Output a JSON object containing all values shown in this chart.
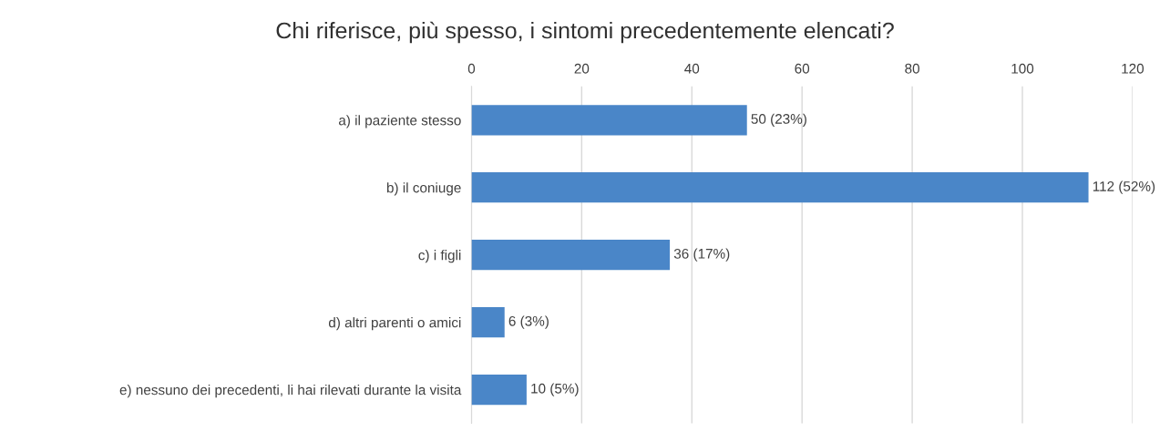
{
  "chart_data": {
    "type": "bar",
    "orientation": "horizontal",
    "title": "Chi riferisce, più spesso, i sintomi precedentemente elencati?",
    "categories": [
      "a) il paziente stesso",
      "b) il coniuge",
      "c) i figli",
      "d) altri parenti o amici",
      "e) nessuno dei precedenti, li hai rilevati durante la visita"
    ],
    "values": [
      50,
      112,
      36,
      6,
      10
    ],
    "value_labels": [
      "50 (23%)",
      "112 (52%)",
      "36 (17%)",
      "6 (3%)",
      "10 (5%)"
    ],
    "color": "#4a86c8",
    "xlim": [
      0,
      120
    ],
    "xticks": [
      0,
      20,
      40,
      60,
      80,
      100,
      120
    ],
    "grid": "x"
  }
}
